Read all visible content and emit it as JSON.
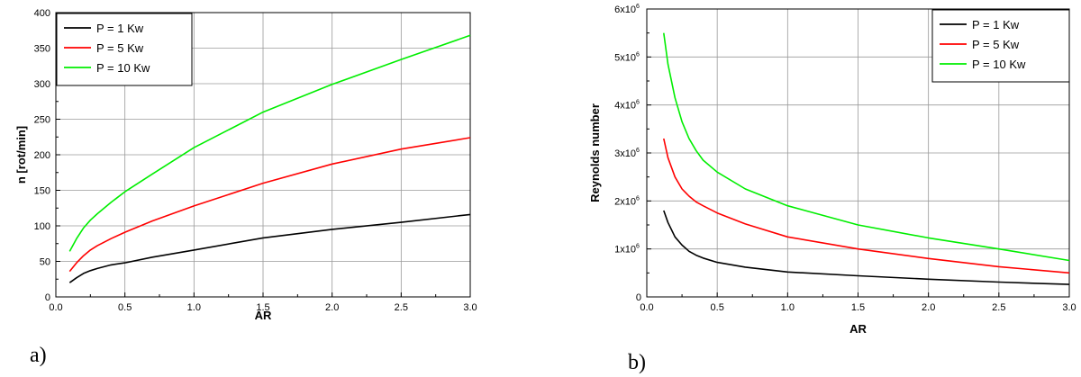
{
  "chart_data": [
    {
      "type": "line",
      "panel_label": "a)",
      "xlabel": "AR",
      "ylabel": "n [rot/min]",
      "xlim": [
        0.0,
        3.0
      ],
      "ylim": [
        0,
        400
      ],
      "xticks": [
        "0.0",
        "0.5",
        "1.0",
        "1.5",
        "2.0",
        "2.5",
        "3.0"
      ],
      "yticks": [
        "0",
        "50",
        "100",
        "150",
        "200",
        "250",
        "300",
        "350",
        "400"
      ],
      "grid": true,
      "legend_position": "top-left",
      "series": [
        {
          "name": "P = 1 Kw",
          "color": "#000000",
          "x": [
            0.1,
            0.15,
            0.2,
            0.25,
            0.3,
            0.4,
            0.5,
            0.7,
            1.0,
            1.5,
            2.0,
            2.5,
            3.0
          ],
          "y": [
            20,
            27,
            33,
            37,
            40,
            45,
            48,
            56,
            66,
            83,
            95,
            105,
            116
          ]
        },
        {
          "name": "P = 5 Kw",
          "color": "#ff0000",
          "x": [
            0.1,
            0.15,
            0.2,
            0.25,
            0.3,
            0.4,
            0.5,
            0.7,
            1.0,
            1.5,
            2.0,
            2.5,
            3.0
          ],
          "y": [
            36,
            48,
            58,
            66,
            72,
            82,
            91,
            107,
            128,
            160,
            187,
            208,
            224
          ]
        },
        {
          "name": "P = 10 Kw",
          "color": "#00ee00",
          "x": [
            0.1,
            0.15,
            0.2,
            0.25,
            0.3,
            0.4,
            0.5,
            0.7,
            1.0,
            1.5,
            2.0,
            2.5,
            3.0
          ],
          "y": [
            64,
            82,
            97,
            108,
            117,
            133,
            148,
            173,
            210,
            260,
            299,
            334,
            368
          ]
        }
      ]
    },
    {
      "type": "line",
      "panel_label": "b)",
      "xlabel": "AR",
      "ylabel": "Reynolds number",
      "xlim": [
        0.0,
        3.0
      ],
      "ylim": [
        0,
        6000000
      ],
      "xticks": [
        "0.0",
        "0.5",
        "1.0",
        "1.5",
        "2.0",
        "2.5",
        "3.0"
      ],
      "yticks": [
        "0",
        "1x10",
        "2x10",
        "3x10",
        "4x10",
        "5x10",
        "6x10"
      ],
      "ytick_exponent": "6",
      "grid": true,
      "legend_position": "top-right",
      "series": [
        {
          "name": "P = 1 Kw",
          "color": "#000000",
          "x": [
            0.12,
            0.15,
            0.2,
            0.25,
            0.3,
            0.35,
            0.4,
            0.5,
            0.7,
            1.0,
            1.5,
            2.0,
            2.5,
            3.0
          ],
          "y": [
            1800000,
            1550000,
            1250000,
            1080000,
            950000,
            870000,
            810000,
            720000,
            620000,
            520000,
            440000,
            370000,
            310000,
            260000
          ]
        },
        {
          "name": "P = 5 Kw",
          "color": "#ff0000",
          "x": [
            0.12,
            0.15,
            0.2,
            0.25,
            0.3,
            0.35,
            0.4,
            0.5,
            0.7,
            1.0,
            1.5,
            2.0,
            2.5,
            3.0
          ],
          "y": [
            3300000,
            2900000,
            2500000,
            2250000,
            2100000,
            1980000,
            1900000,
            1750000,
            1520000,
            1250000,
            1000000,
            800000,
            630000,
            500000
          ]
        },
        {
          "name": "P = 10 Kw",
          "color": "#00ee00",
          "x": [
            0.12,
            0.15,
            0.2,
            0.25,
            0.3,
            0.35,
            0.4,
            0.5,
            0.7,
            1.0,
            1.5,
            2.0,
            2.5,
            3.0
          ],
          "y": [
            5500000,
            4850000,
            4150000,
            3650000,
            3300000,
            3050000,
            2850000,
            2600000,
            2250000,
            1900000,
            1500000,
            1230000,
            1000000,
            760000
          ]
        }
      ]
    }
  ]
}
